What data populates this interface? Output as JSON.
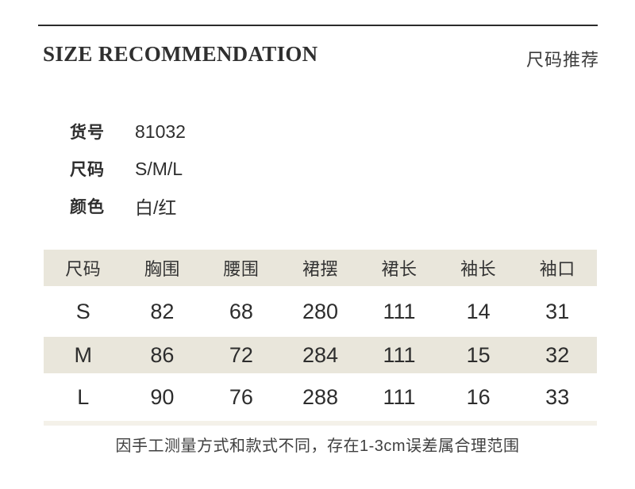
{
  "header": {
    "title_en": "SIZE RECOMMENDATION",
    "title_zh": "尺码推荐"
  },
  "product_info": {
    "rows": [
      {
        "label": "货号",
        "value": "81032"
      },
      {
        "label": "尺码",
        "value": "S/M/L"
      },
      {
        "label": "颜色",
        "value": "白/红"
      }
    ]
  },
  "size_table": {
    "columns": [
      "尺码",
      "胸围",
      "腰围",
      "裙摆",
      "裙长",
      "袖长",
      "袖口"
    ],
    "rows": [
      {
        "size": "S",
        "values": [
          "82",
          "68",
          "280",
          "111",
          "14",
          "31"
        ]
      },
      {
        "size": "M",
        "values": [
          "86",
          "72",
          "284",
          "111",
          "15",
          "32"
        ]
      },
      {
        "size": "L",
        "values": [
          "90",
          "76",
          "288",
          "111",
          "16",
          "33"
        ]
      }
    ]
  },
  "note": "因手工测量方式和款式不同，存在1-3cm误差属合理范围",
  "colors": {
    "row_beige": "#e9e6db",
    "bottom_strip": "#f4f1e9",
    "rule_dark": "#2b2b2b"
  }
}
